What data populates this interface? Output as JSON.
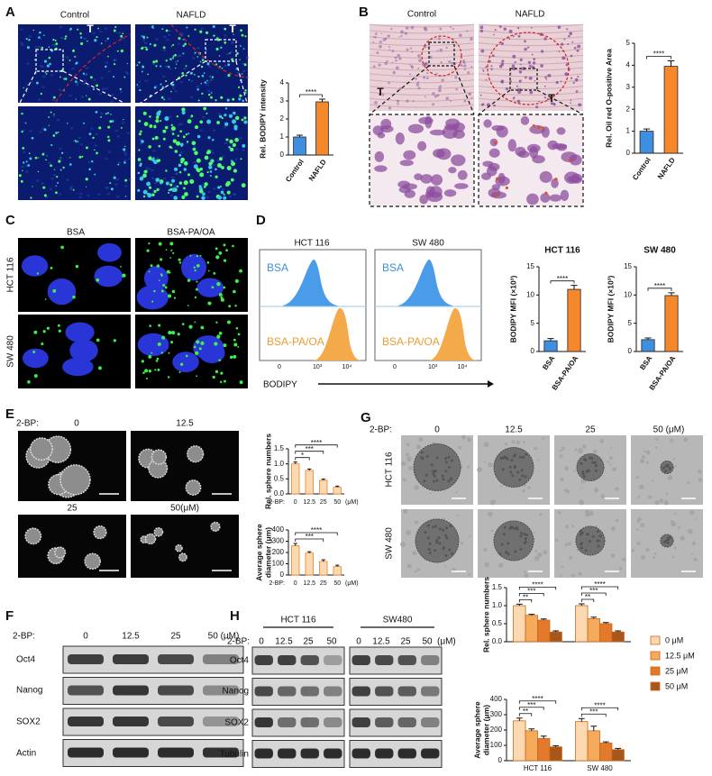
{
  "panels": {
    "A": {
      "label": "A",
      "columns": [
        "Control",
        "NAFLD"
      ],
      "tumor_marks": [
        "T",
        "T"
      ]
    },
    "B": {
      "label": "B",
      "columns": [
        "Control",
        "NAFLD"
      ],
      "tumor_marks": [
        "T",
        "T"
      ]
    },
    "C": {
      "label": "C",
      "columns": [
        "BSA",
        "BSA-PA/OA"
      ],
      "rows": [
        "HCT 116",
        "SW 480"
      ]
    },
    "D": {
      "label": "D",
      "flow": {
        "titles": [
          "HCT 116",
          "SW 480"
        ],
        "populations": [
          "BSA",
          "BSA-PA/OA"
        ],
        "xticks": [
          "0",
          "10³",
          "10⁴"
        ],
        "xlabel": "BODIPY"
      }
    },
    "E": {
      "label": "E",
      "treatment": "2-BP:",
      "doses": [
        "0",
        "12.5",
        "25",
        "50(μM)"
      ]
    },
    "F": {
      "label": "F",
      "treatment": "2-BP:",
      "doses": [
        "0",
        "12.5",
        "25",
        "50 (μM)"
      ],
      "proteins": [
        "Oct4",
        "Nanog",
        "SOX2",
        "Actin"
      ]
    },
    "G": {
      "label": "G",
      "treatment": "2-BP:",
      "doses": [
        "0",
        "12.5",
        "25",
        "50 (μM)"
      ],
      "rows": [
        "HCT 116",
        "SW 480"
      ]
    },
    "H": {
      "label": "H",
      "cell_lines": [
        "HCT 116",
        "SW480"
      ],
      "treatment": "2-BP:",
      "doses": [
        "0",
        "12.5",
        "25",
        "50"
      ],
      "unit": "(μM)",
      "proteins": [
        "Oct4",
        "Nanog",
        "SOX2",
        "Tubulin"
      ]
    }
  },
  "chart_data": [
    {
      "type": "bar",
      "ylabel": "Rel. BODIPY intensity",
      "categories": [
        "Control",
        "NAFLD"
      ],
      "values": [
        1.0,
        2.95
      ],
      "errors": [
        0.1,
        0.15
      ],
      "colors": [
        "#3f8fe0",
        "#f4882a"
      ],
      "ylim": [
        0,
        4
      ],
      "yticks": [
        0,
        1,
        2,
        3,
        4
      ],
      "comparisons": [
        {
          "categories": [
            0,
            1
          ],
          "label": "****"
        }
      ]
    },
    {
      "type": "bar",
      "ylabel": "Rel. Oil red O-positive Area",
      "categories": [
        "Control",
        "NAFLD"
      ],
      "values": [
        1.0,
        3.95
      ],
      "errors": [
        0.1,
        0.25
      ],
      "colors": [
        "#3f8fe0",
        "#f4882a"
      ],
      "ylim": [
        0,
        5
      ],
      "yticks": [
        0,
        1,
        2,
        3,
        4,
        5
      ],
      "comparisons": [
        {
          "categories": [
            0,
            1
          ],
          "label": "****"
        }
      ]
    },
    {
      "type": "bar",
      "title": "HCT 116",
      "ylabel": "BODIPY MFI (×10³)",
      "categories": [
        "BSA",
        "BSA-PA/OA"
      ],
      "values": [
        1.9,
        11.0
      ],
      "errors": [
        0.4,
        0.7
      ],
      "colors": [
        "#3f8fe0",
        "#f4882a"
      ],
      "ylim": [
        0,
        15
      ],
      "yticks": [
        0,
        5,
        10,
        15
      ],
      "comparisons": [
        {
          "categories": [
            0,
            1
          ],
          "label": "****"
        }
      ]
    },
    {
      "type": "bar",
      "title": "SW 480",
      "ylabel": "BODIPY MFI (×10³)",
      "categories": [
        "BSA",
        "BSA-PA/OA"
      ],
      "values": [
        2.1,
        9.9
      ],
      "errors": [
        0.3,
        0.5
      ],
      "colors": [
        "#3f8fe0",
        "#f4882a"
      ],
      "ylim": [
        0,
        15
      ],
      "yticks": [
        0,
        5,
        10,
        15
      ],
      "comparisons": [
        {
          "categories": [
            0,
            1
          ],
          "label": "****"
        }
      ]
    },
    {
      "type": "bar",
      "ylabel": [
        "Rel. sphere numbers"
      ],
      "x_prefix": "2-BP:",
      "x_unit": "(μM)",
      "categories": [
        "0",
        "12.5",
        "25",
        "50"
      ],
      "values": [
        1.0,
        0.78,
        0.45,
        0.22
      ],
      "errors": [
        0.06,
        0.05,
        0.04,
        0.04
      ],
      "color": "#fcd9b0",
      "edge_color": "#e8822e",
      "ylim": [
        0,
        1.5
      ],
      "yticks": [
        {
          "value": 0,
          "label": "0.0"
        },
        0.5,
        {
          "value": 1,
          "label": "1.0"
        },
        1.5
      ],
      "comparisons": [
        {
          "categories": [
            0,
            1
          ],
          "label": "*"
        },
        {
          "categories": [
            0,
            2
          ],
          "label": "***"
        },
        {
          "categories": [
            0,
            3
          ],
          "label": "****"
        }
      ]
    },
    {
      "type": "bar",
      "ylabel": [
        "Average sphere",
        "diameter (μm)"
      ],
      "x_prefix": "2-BP:",
      "x_unit": "(μM)",
      "categories": [
        "0",
        "12.5",
        "25",
        "50"
      ],
      "values": [
        260,
        195,
        120,
        75
      ],
      "errors": [
        20,
        12,
        15,
        12
      ],
      "color": "#fcd9b0",
      "edge_color": "#e8822e",
      "ylim": [
        0,
        400
      ],
      "yticks": [
        0,
        100,
        200,
        300,
        400
      ],
      "comparisons": [
        {
          "categories": [
            0,
            2
          ],
          "label": "***"
        },
        {
          "categories": [
            0,
            3
          ],
          "label": "****"
        }
      ]
    },
    {
      "type": "bar",
      "ylabel": [
        "Rel. sphere numbers"
      ],
      "categories": [
        null,
        null
      ],
      "edge_color": "#c9661d",
      "legend": "right",
      "series": [
        {
          "name": "0 μM",
          "color": "#fcd9b0",
          "values": [
            1.0,
            1.0
          ],
          "errors": [
            0.04,
            0.05
          ]
        },
        {
          "name": "12.5 μM",
          "color": "#f6aa5c",
          "values": [
            0.73,
            0.64
          ],
          "errors": [
            0.03,
            0.04
          ]
        },
        {
          "name": "25 μM",
          "color": "#e3792a",
          "values": [
            0.6,
            0.5
          ],
          "errors": [
            0.03,
            0.03
          ]
        },
        {
          "name": "50 μM",
          "color": "#a9561b",
          "values": [
            0.27,
            0.27
          ],
          "errors": [
            0.03,
            0.03
          ]
        }
      ],
      "ylim": [
        0,
        1.5
      ],
      "yticks": [
        {
          "value": 0,
          "label": "0.0"
        },
        0.5,
        {
          "value": 1,
          "label": "1.0"
        },
        1.5
      ],
      "comparisons": [
        {
          "group": 0,
          "series": [
            0,
            1
          ],
          "label": "**"
        },
        {
          "group": 0,
          "series": [
            0,
            2
          ],
          "label": "***"
        },
        {
          "group": 0,
          "series": [
            0,
            3
          ],
          "label": "****"
        },
        {
          "group": 1,
          "series": [
            0,
            1
          ],
          "label": "**"
        },
        {
          "group": 1,
          "series": [
            0,
            2
          ],
          "label": "***"
        },
        {
          "group": 1,
          "series": [
            0,
            3
          ],
          "label": "****"
        }
      ]
    },
    {
      "type": "bar",
      "ylabel": [
        "Average sphere",
        "diameter (μm)"
      ],
      "categories": [
        "HCT 116",
        "SW 480"
      ],
      "edge_color": "#c9661d",
      "series": [
        {
          "color": "#fcd9b0",
          "values": [
            260,
            255
          ],
          "errors": [
            18,
            20
          ]
        },
        {
          "color": "#f6aa5c",
          "values": [
            195,
            195
          ],
          "errors": [
            12,
            30
          ]
        },
        {
          "color": "#e3792a",
          "values": [
            145,
            115
          ],
          "errors": [
            15,
            8
          ]
        },
        {
          "color": "#a9561b",
          "values": [
            90,
            72
          ],
          "errors": [
            8,
            8
          ]
        }
      ],
      "ylim": [
        0,
        400
      ],
      "yticks": [
        0,
        100,
        200,
        300,
        400
      ],
      "comparisons": [
        {
          "group": 0,
          "series": [
            0,
            1
          ],
          "label": "**"
        },
        {
          "group": 0,
          "series": [
            0,
            2
          ],
          "label": "***"
        },
        {
          "group": 0,
          "series": [
            0,
            3
          ],
          "label": "****"
        },
        {
          "group": 1,
          "series": [
            0,
            2
          ],
          "label": "***"
        },
        {
          "group": 1,
          "series": [
            0,
            3
          ],
          "label": "****"
        }
      ]
    }
  ]
}
